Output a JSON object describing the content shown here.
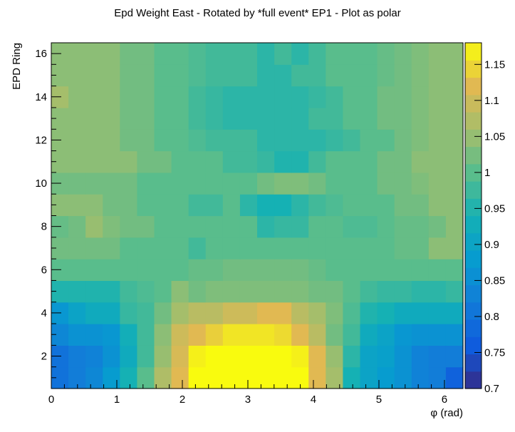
{
  "chart_data": {
    "type": "heatmap",
    "title": "Epd Weight East - Rotated by *full event* EP1 - Plot as polar",
    "xlabel": "φ (rad)",
    "ylabel": "EPD Ring",
    "xlim": [
      0,
      6.283
    ],
    "ylim": [
      0.5,
      16.5
    ],
    "x_ticks": [
      0,
      1,
      2,
      3,
      4,
      5,
      6
    ],
    "y_ticks": [
      2,
      4,
      6,
      8,
      10,
      12,
      14,
      16
    ],
    "colorbar": {
      "range": [
        0.7,
        1.18
      ],
      "ticks": [
        "0.7",
        "0.75",
        "0.8",
        "0.85",
        "0.9",
        "0.95",
        "1",
        "1.05",
        "1.1",
        "1.15"
      ]
    },
    "n_phi_bins": 24,
    "rows": [
      [
        0.8,
        0.82,
        0.84,
        0.88,
        0.94,
        1.0,
        1.07,
        1.12,
        1.18,
        1.18,
        1.18,
        1.18,
        1.18,
        1.18,
        1.18,
        1.12,
        1.06,
        0.94,
        0.9,
        0.88,
        0.86,
        0.83,
        0.82,
        0.77
      ],
      [
        0.8,
        0.82,
        0.83,
        0.86,
        0.92,
        0.98,
        1.05,
        1.11,
        1.17,
        1.18,
        1.18,
        1.18,
        1.18,
        1.18,
        1.17,
        1.12,
        1.05,
        0.96,
        0.9,
        0.89,
        0.86,
        0.83,
        0.82,
        0.82
      ],
      [
        0.84,
        0.86,
        0.86,
        0.87,
        0.93,
        0.98,
        1.04,
        1.1,
        1.12,
        1.14,
        1.16,
        1.16,
        1.16,
        1.15,
        1.12,
        1.08,
        1.02,
        0.98,
        0.92,
        0.9,
        0.87,
        0.86,
        0.86,
        0.86
      ],
      [
        0.87,
        0.9,
        0.92,
        0.92,
        0.97,
        0.98,
        1.02,
        1.06,
        1.08,
        1.08,
        1.1,
        1.1,
        1.12,
        1.12,
        1.08,
        1.06,
        1.03,
        0.99,
        0.95,
        0.94,
        0.92,
        0.92,
        0.92,
        0.92
      ],
      [
        0.95,
        0.95,
        0.95,
        0.95,
        0.98,
        0.99,
        1.0,
        1.04,
        1.02,
        1.03,
        1.03,
        1.03,
        1.03,
        1.03,
        1.03,
        1.02,
        1.02,
        1.0,
        0.98,
        0.97,
        0.97,
        0.96,
        0.96,
        0.97
      ],
      [
        1.0,
        1.0,
        1.0,
        1.0,
        1.0,
        1.0,
        1.0,
        1.0,
        1.01,
        1.01,
        1.02,
        1.02,
        1.02,
        1.02,
        1.02,
        1.01,
        1.0,
        1.0,
        1.0,
        1.0,
        1.0,
        1.0,
        1.0,
        1.0
      ],
      [
        1.02,
        1.02,
        1.02,
        1.02,
        1.0,
        1.0,
        1.0,
        1.0,
        0.98,
        1.0,
        1.0,
        1.0,
        1.0,
        1.0,
        1.0,
        1.0,
        1.0,
        1.0,
        1.0,
        1.0,
        1.01,
        1.01,
        1.04,
        1.04
      ],
      [
        1.01,
        1.02,
        1.05,
        1.03,
        1.02,
        1.02,
        1.0,
        1.0,
        1.0,
        1.0,
        1.0,
        1.0,
        0.96,
        0.97,
        0.97,
        1.0,
        1.0,
        0.99,
        0.99,
        1.0,
        1.01,
        1.01,
        1.02,
        1.04
      ],
      [
        1.04,
        1.04,
        1.04,
        1.02,
        1.02,
        1.0,
        1.0,
        1.0,
        0.98,
        0.98,
        1.0,
        0.96,
        0.94,
        0.94,
        0.96,
        0.98,
        0.99,
        1.0,
        1.0,
        1.0,
        1.02,
        1.02,
        1.04,
        1.04
      ],
      [
        1.02,
        1.02,
        1.02,
        1.02,
        1.02,
        1.0,
        1.0,
        1.0,
        1.0,
        1.0,
        1.0,
        1.0,
        1.02,
        1.03,
        1.03,
        1.02,
        1.0,
        1.0,
        1.0,
        1.02,
        1.02,
        1.03,
        1.04,
        1.04
      ],
      [
        1.04,
        1.04,
        1.04,
        1.04,
        1.04,
        1.02,
        1.02,
        1.0,
        1.0,
        1.0,
        0.98,
        0.98,
        0.97,
        0.95,
        0.95,
        0.98,
        1.0,
        1.0,
        1.0,
        1.02,
        1.02,
        1.04,
        1.04,
        1.04
      ],
      [
        1.04,
        1.04,
        1.04,
        1.04,
        1.02,
        1.02,
        1.0,
        1.0,
        0.99,
        0.98,
        0.98,
        0.98,
        0.96,
        0.96,
        0.96,
        0.96,
        0.97,
        0.98,
        1.0,
        1.0,
        1.02,
        1.03,
        1.04,
        1.04
      ],
      [
        1.04,
        1.04,
        1.04,
        1.04,
        1.02,
        1.02,
        1.0,
        1.0,
        0.98,
        0.97,
        0.96,
        0.96,
        0.96,
        0.96,
        0.96,
        0.98,
        0.98,
        1.0,
        1.0,
        1.02,
        1.02,
        1.03,
        1.04,
        1.04
      ],
      [
        1.06,
        1.04,
        1.04,
        1.04,
        1.02,
        1.02,
        1.0,
        1.0,
        0.98,
        0.97,
        0.96,
        0.96,
        0.96,
        0.96,
        0.96,
        0.97,
        0.98,
        1.0,
        1.0,
        1.02,
        1.02,
        1.03,
        1.04,
        1.04
      ],
      [
        1.04,
        1.04,
        1.04,
        1.04,
        1.02,
        1.02,
        1.0,
        1.0,
        0.99,
        0.98,
        0.98,
        0.98,
        0.96,
        0.96,
        0.98,
        0.98,
        1.0,
        1.0,
        1.0,
        1.01,
        1.02,
        1.03,
        1.04,
        1.04
      ],
      [
        1.04,
        1.04,
        1.04,
        1.04,
        1.02,
        1.02,
        1.0,
        1.0,
        0.99,
        0.98,
        0.98,
        0.98,
        0.96,
        0.98,
        0.96,
        0.98,
        1.0,
        1.0,
        1.0,
        1.01,
        1.02,
        1.03,
        1.04,
        1.04
      ]
    ]
  }
}
